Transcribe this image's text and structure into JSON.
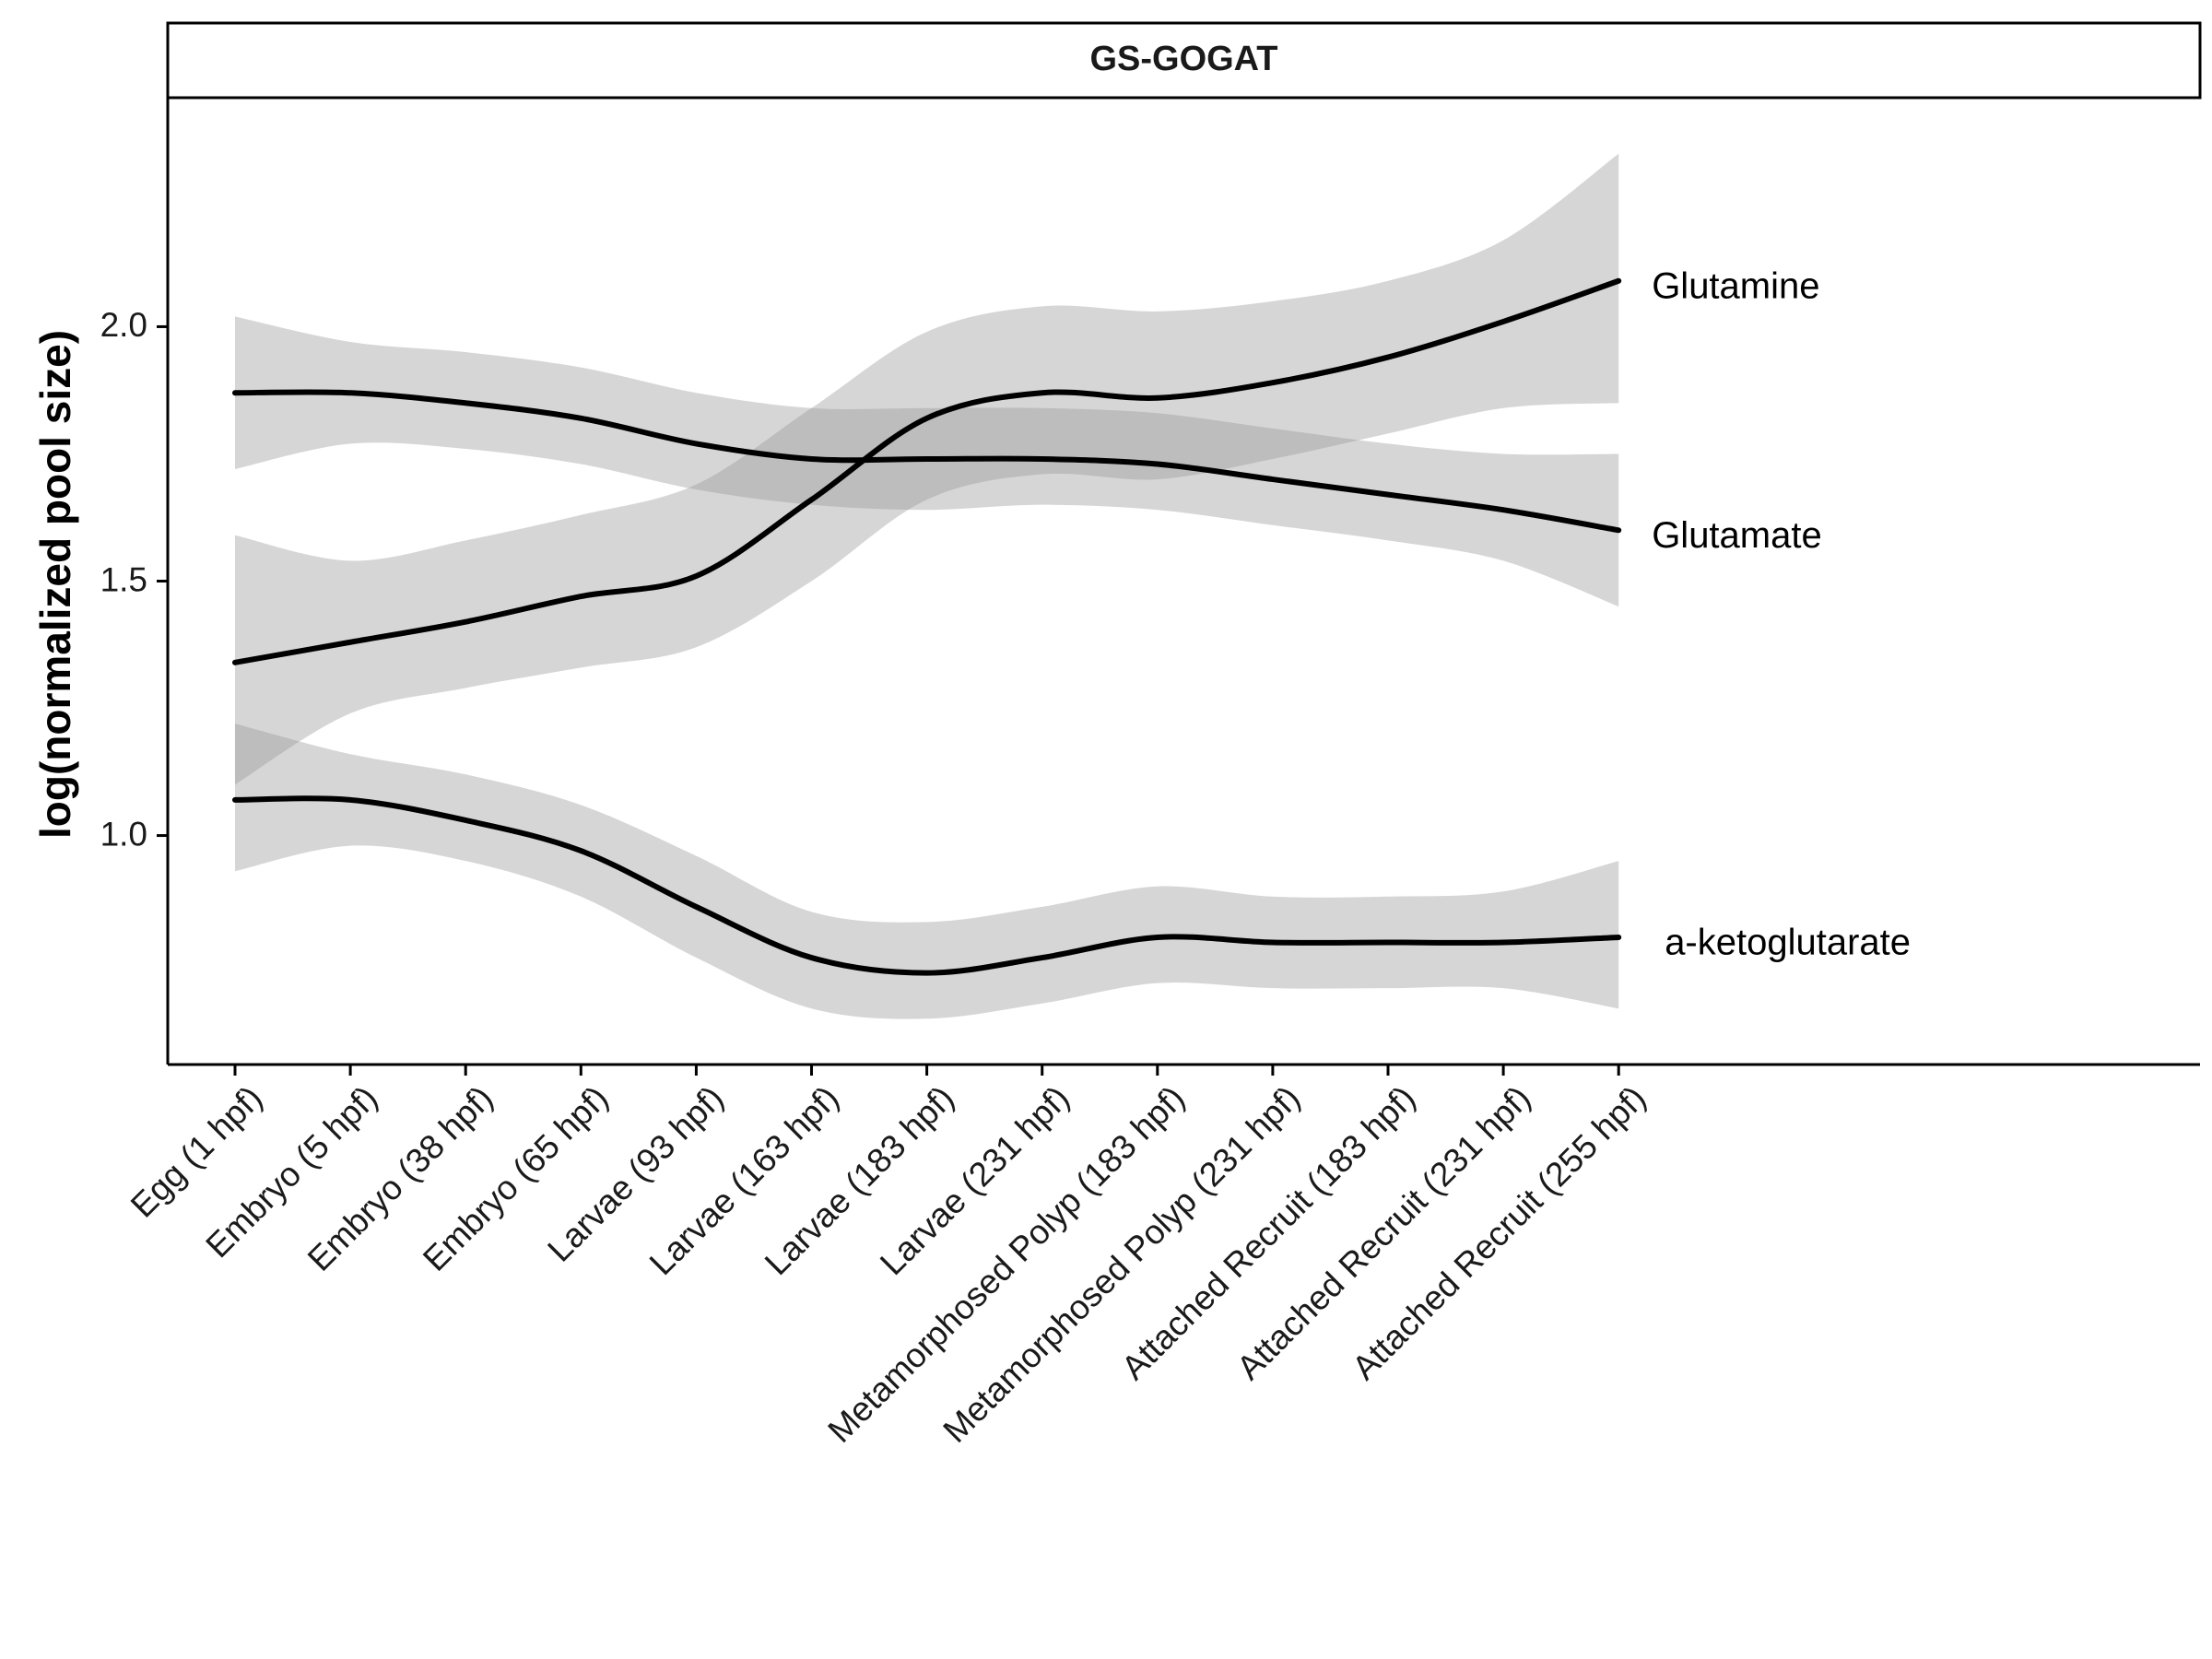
{
  "chart_data": {
    "type": "line",
    "facet_title": "GS-GOGAT",
    "xlabel": "",
    "ylabel": "log(normalized pool size)",
    "categories": [
      "Egg (1 hpf)",
      "Embryo (5 hpf)",
      "Embryo (38 hpf)",
      "Embryo (65 hpf)",
      "Larvae (93 hpf)",
      "Larvae (163 hpf)",
      "Larvae (183 hpf)",
      "Larvae (231 hpf)",
      "Metamorphosed Polyp (183 hpf)",
      "Metamorphosed Polyp (231 hpf)",
      "Attached Recruit (183 hpf)",
      "Attached Recruit (231 hpf)",
      "Attached Recruit (255 hpf)"
    ],
    "yticks": [
      "1.0",
      "1.5",
      "2.0"
    ],
    "ylim": [
      0.55,
      2.45
    ],
    "grid": false,
    "legend": "none",
    "series": [
      {
        "name": "Glutamine",
        "values": [
          1.34,
          1.38,
          1.42,
          1.47,
          1.51,
          1.66,
          1.82,
          1.87,
          1.86,
          1.89,
          1.94,
          2.01,
          2.09
        ],
        "lower": [
          1.1,
          1.24,
          1.29,
          1.33,
          1.37,
          1.5,
          1.66,
          1.71,
          1.7,
          1.74,
          1.79,
          1.84,
          1.85
        ],
        "upper": [
          1.59,
          1.54,
          1.58,
          1.63,
          1.69,
          1.84,
          1.99,
          2.04,
          2.03,
          2.05,
          2.09,
          2.17,
          2.34
        ]
      },
      {
        "name": "Glutamate",
        "values": [
          1.87,
          1.87,
          1.85,
          1.82,
          1.77,
          1.74,
          1.74,
          1.74,
          1.73,
          1.7,
          1.67,
          1.64,
          1.6
        ],
        "lower": [
          1.72,
          1.77,
          1.76,
          1.73,
          1.68,
          1.65,
          1.64,
          1.65,
          1.64,
          1.61,
          1.58,
          1.54,
          1.45
        ],
        "upper": [
          2.02,
          1.97,
          1.95,
          1.92,
          1.87,
          1.84,
          1.84,
          1.84,
          1.83,
          1.8,
          1.77,
          1.75,
          1.75
        ]
      },
      {
        "name": "a-ketoglutarate",
        "values": [
          1.07,
          1.07,
          1.03,
          0.97,
          0.86,
          0.76,
          0.73,
          0.76,
          0.8,
          0.79,
          0.79,
          0.79,
          0.8
        ],
        "lower": [
          0.93,
          0.98,
          0.95,
          0.88,
          0.76,
          0.66,
          0.64,
          0.67,
          0.71,
          0.7,
          0.7,
          0.7,
          0.66
        ],
        "upper": [
          1.22,
          1.16,
          1.12,
          1.06,
          0.96,
          0.85,
          0.83,
          0.86,
          0.9,
          0.88,
          0.88,
          0.89,
          0.95
        ]
      }
    ]
  },
  "colors": {
    "line": "#000000",
    "ribbon": "#999999",
    "facet_strip_fill": "#ffffff",
    "facet_strip_border": "#000000"
  }
}
